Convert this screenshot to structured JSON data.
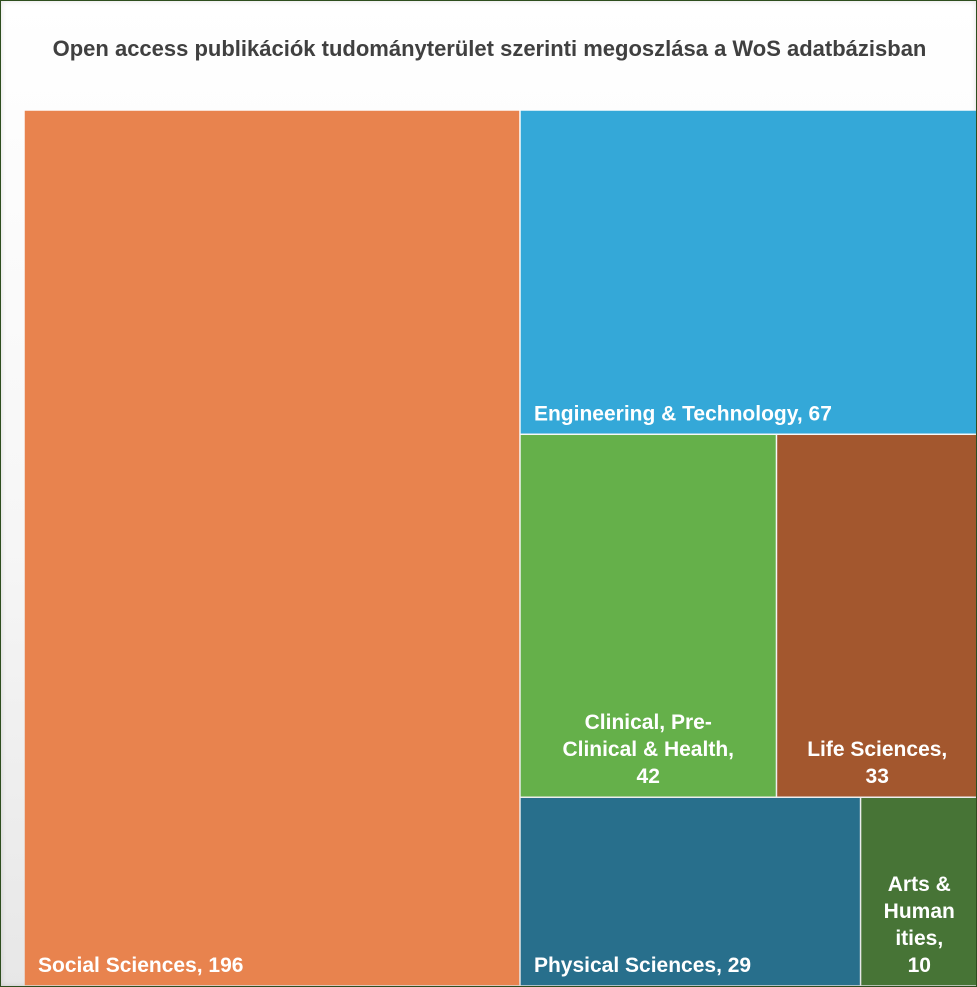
{
  "chart_data": {
    "type": "treemap",
    "title": "Open access publikációk tudományterület szerinti megoszlása a WoS adatbázisban",
    "items": [
      {
        "name": "Social Sciences",
        "value": 196,
        "label_lines": [
          "Social Sciences, 196"
        ],
        "color": "#E8834E"
      },
      {
        "name": "Engineering & Technology",
        "value": 67,
        "label_lines": [
          "Engineering & Technology, 67"
        ],
        "color": "#34A8D8"
      },
      {
        "name": "Clinical, Pre-Clinical & Health",
        "value": 42,
        "label_lines": [
          "Clinical, Pre-",
          "Clinical & Health,",
          "42"
        ],
        "color": "#65B04A"
      },
      {
        "name": "Life Sciences",
        "value": 33,
        "label_lines": [
          "Life Sciences,",
          "33"
        ],
        "color": "#A3572E"
      },
      {
        "name": "Physical Sciences",
        "value": 29,
        "label_lines": [
          "Physical Sciences, 29"
        ],
        "color": "#286F8C"
      },
      {
        "name": "Arts & Humanities",
        "value": 10,
        "label_lines": [
          "Arts &",
          "Human",
          "ities,",
          "10"
        ],
        "color": "#477436"
      }
    ]
  }
}
